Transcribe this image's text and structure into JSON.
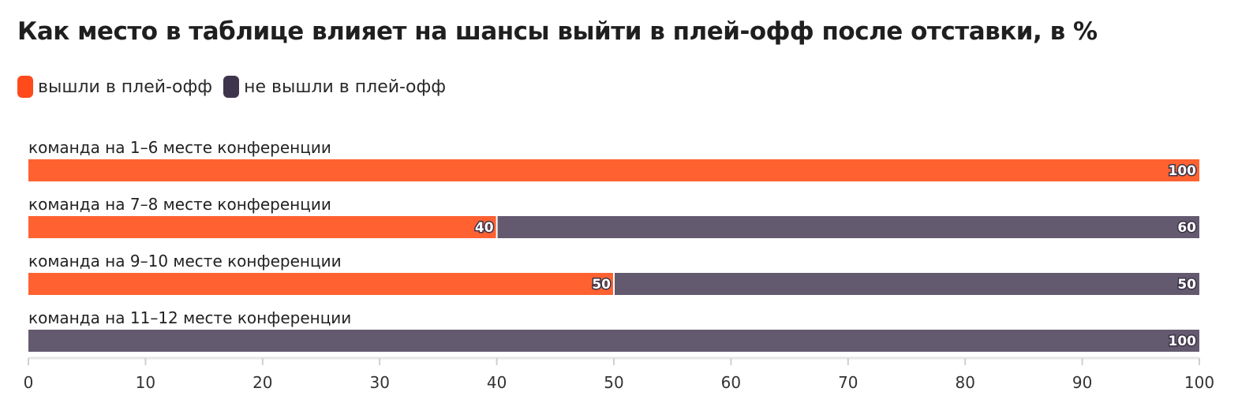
{
  "chart_data": {
    "type": "bar",
    "orientation": "horizontal",
    "stacked": true,
    "title": "Как место в таблице влияет на шансы выйти в плей-офф после отставки, в %",
    "categories": [
      "команда на 1–6 месте конференции",
      "команда на 7–8 месте конференции",
      "команда на 9–10 месте конференции",
      "команда на 11–12 месте конференции"
    ],
    "series": [
      {
        "name": "вышли в плей-офф",
        "color": "#ff6131",
        "values": [
          100,
          40,
          50,
          0
        ]
      },
      {
        "name": "не вышли в плей-офф",
        "color": "#635a6f",
        "values": [
          0,
          60,
          50,
          100
        ]
      }
    ],
    "xlim": [
      0,
      100
    ],
    "xticks": [
      0,
      10,
      20,
      30,
      40,
      50,
      60,
      70,
      80,
      90,
      100
    ],
    "legend_position": "top-left",
    "grid": false
  },
  "legend_colors": [
    "#ff4a1c",
    "#3e344c"
  ]
}
